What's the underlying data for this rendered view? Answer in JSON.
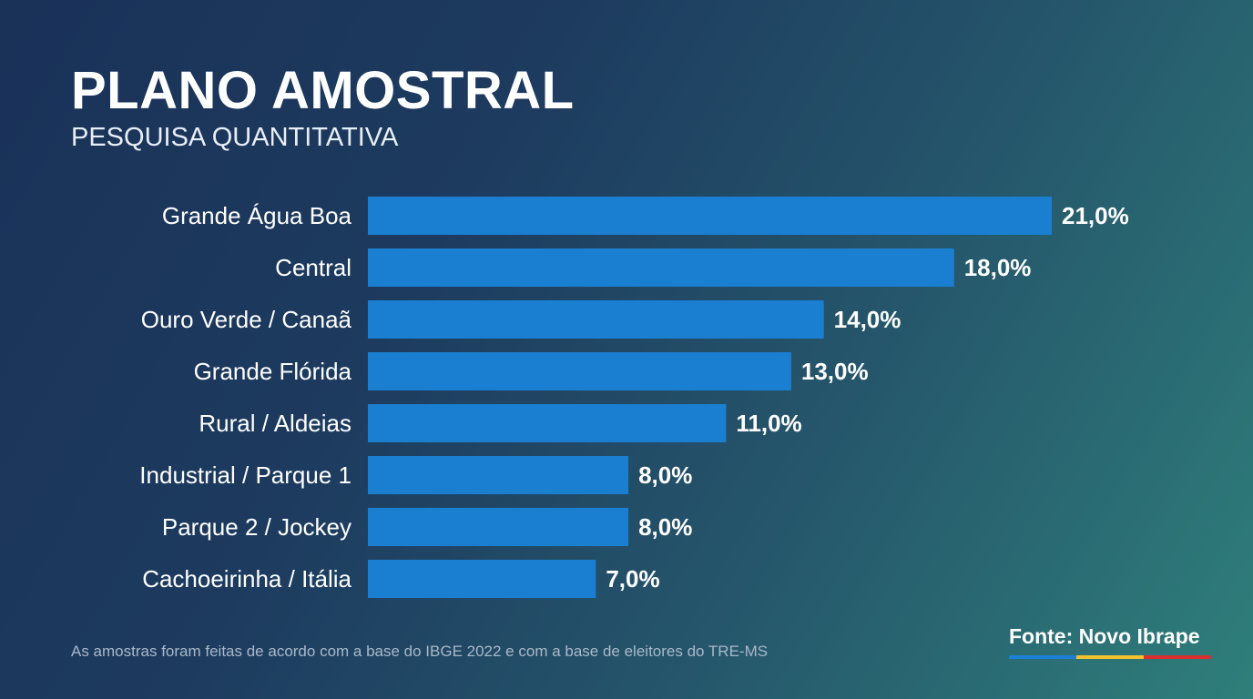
{
  "header": {
    "title": "PLANO AMOSTRAL",
    "subtitle": "PESQUISA QUANTITATIVA"
  },
  "chart_data": {
    "type": "bar",
    "orientation": "horizontal",
    "title": "PLANO AMOSTRAL",
    "categories": [
      "Grande Água Boa",
      "Central",
      "Ouro Verde / Canaã",
      "Grande Flórida",
      "Rural / Aldeias",
      "Industrial / Parque 1",
      "Parque 2 / Jockey",
      "Cachoeirinha / Itália"
    ],
    "values": [
      21.0,
      18.0,
      14.0,
      13.0,
      11.0,
      8.0,
      8.0,
      7.0
    ],
    "labels": [
      "21,0%",
      "18,0%",
      "14,0%",
      "13,0%",
      "11,0%",
      "8,0%",
      "8,0%",
      "7,0%"
    ],
    "unit": "%",
    "xlim": [
      0,
      21
    ],
    "grid": false,
    "bar_color": "#1a7fd0"
  },
  "footer": {
    "note": "As amostras foram feitas de acordo com a base do IBGE 2022 e com a base de eleitores do TRE-MS",
    "source": "Fonte: Novo Ibrape",
    "stripe_colors": [
      "#1e7fd6",
      "#f2c12e",
      "#d9302f"
    ]
  }
}
